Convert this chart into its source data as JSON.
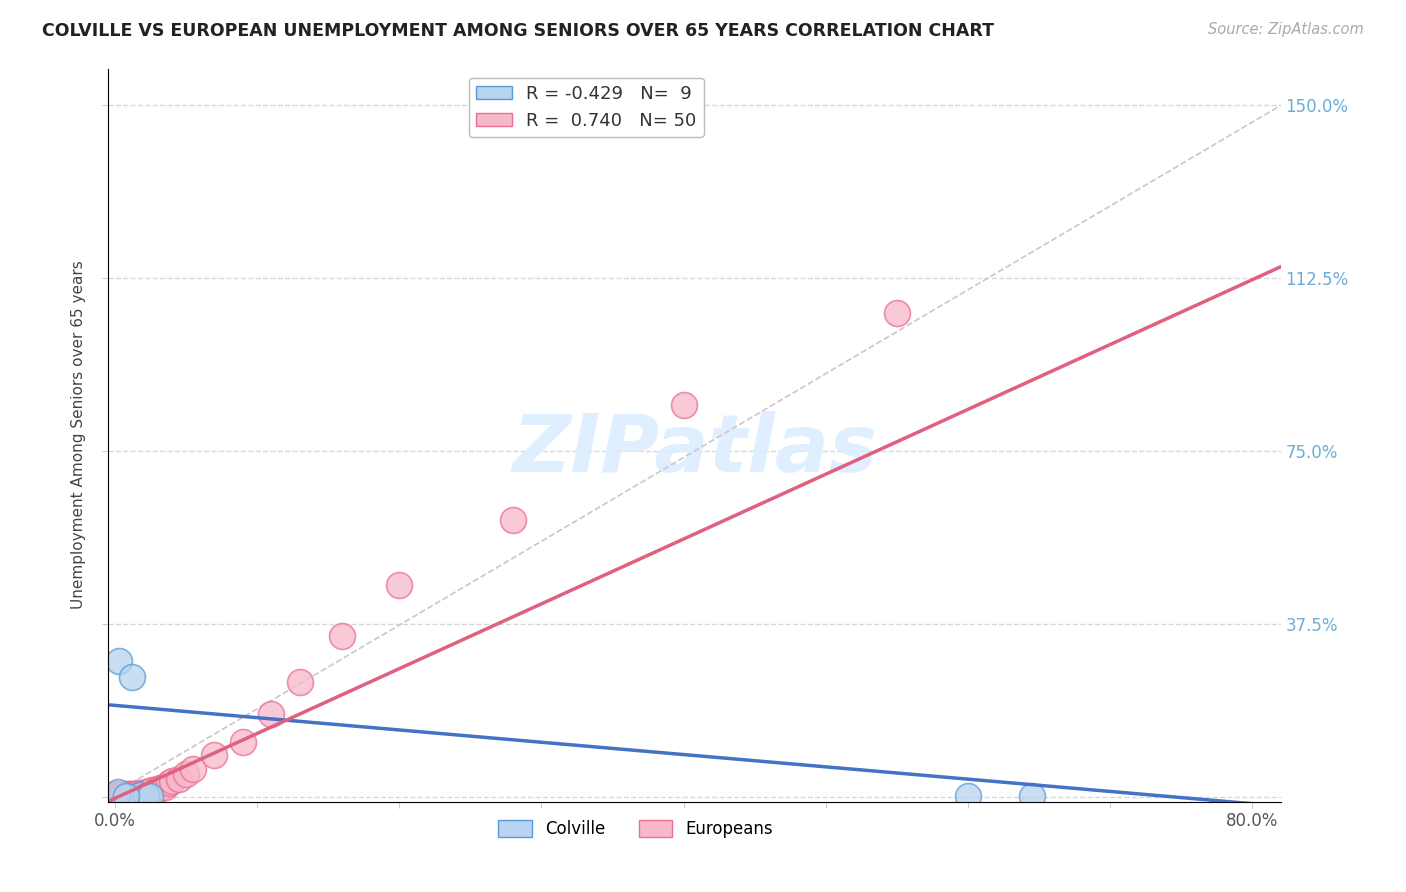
{
  "title": "COLVILLE VS EUROPEAN UNEMPLOYMENT AMONG SENIORS OVER 65 YEARS CORRELATION CHART",
  "source": "Source: ZipAtlas.com",
  "ylabel": "Unemployment Among Seniors over 65 years",
  "xlim": [
    -0.005,
    0.82
  ],
  "ylim": [
    -0.01,
    1.58
  ],
  "colville_R": -0.429,
  "colville_N": 9,
  "european_R": 0.74,
  "european_N": 50,
  "colville_color": "#b8d4f0",
  "european_color": "#f8b8cc",
  "colville_edge_color": "#5b9bd5",
  "european_edge_color": "#e87090",
  "colville_line_color": "#4472c4",
  "european_line_color": "#e06080",
  "ref_line_color": "#c8c8c8",
  "background_color": "#ffffff",
  "grid_color": "#d8d8d8",
  "watermark": "ZIPatlas",
  "right_ytick_color": "#6aaed6",
  "colville_x": [
    0.003,
    0.012,
    0.018,
    0.022,
    0.025,
    0.6,
    0.645,
    0.002,
    0.008
  ],
  "colville_y": [
    0.295,
    0.26,
    0.005,
    0.003,
    0.003,
    0.003,
    0.003,
    0.01,
    0.003
  ],
  "european_x": [
    0.0,
    0.0,
    0.0,
    0.0,
    0.001,
    0.001,
    0.002,
    0.002,
    0.003,
    0.003,
    0.004,
    0.004,
    0.005,
    0.005,
    0.006,
    0.006,
    0.007,
    0.008,
    0.008,
    0.009,
    0.01,
    0.01,
    0.012,
    0.013,
    0.015,
    0.016,
    0.018,
    0.02,
    0.022,
    0.024,
    0.025,
    0.026,
    0.028,
    0.03,
    0.032,
    0.035,
    0.038,
    0.04,
    0.045,
    0.05,
    0.055,
    0.07,
    0.09,
    0.11,
    0.13,
    0.16,
    0.2,
    0.28,
    0.4,
    0.55
  ],
  "european_y": [
    0.0,
    0.002,
    0.004,
    0.006,
    0.002,
    0.004,
    0.003,
    0.005,
    0.003,
    0.005,
    0.003,
    0.005,
    0.003,
    0.005,
    0.004,
    0.006,
    0.004,
    0.003,
    0.005,
    0.006,
    0.004,
    0.007,
    0.006,
    0.005,
    0.007,
    0.008,
    0.007,
    0.008,
    0.01,
    0.01,
    0.012,
    0.015,
    0.013,
    0.018,
    0.02,
    0.022,
    0.03,
    0.035,
    0.04,
    0.05,
    0.06,
    0.09,
    0.12,
    0.18,
    0.25,
    0.35,
    0.46,
    0.6,
    0.85,
    1.05
  ]
}
